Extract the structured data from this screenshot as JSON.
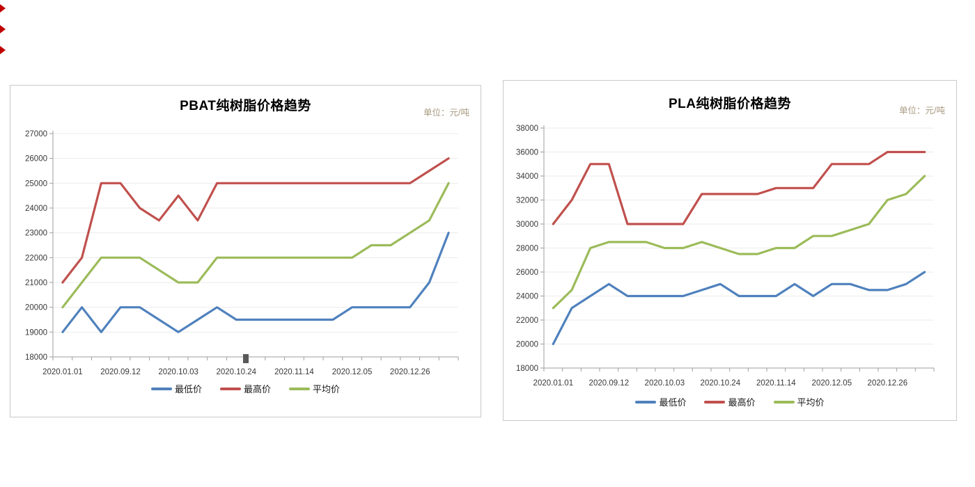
{
  "page": {
    "background": "#ffffff",
    "edge_marker_color": "#c00000",
    "edge_marker_count": 3
  },
  "chart_data": [
    {
      "type": "line",
      "title": "PBAT纯树脂价格趋势",
      "unit_label": "单位：元/吨",
      "ylim": [
        18000,
        27000
      ],
      "ytick_step": 1000,
      "y_tick_labels": [
        "18000",
        "19000",
        "20000",
        "21000",
        "22000",
        "23000",
        "24000",
        "25000",
        "26000",
        "27000"
      ],
      "x_labels": [
        "2020.01.01",
        "2020.09.12",
        "2020.10.03",
        "2020.10.24",
        "2020.11.14",
        "2020.12.05",
        "2020.12.26"
      ],
      "x_label_indices": [
        0,
        3,
        6,
        9,
        12,
        15,
        18
      ],
      "n_points": 21,
      "grid": true,
      "legend_position": "bottom",
      "axis_color": "#9e9e9e",
      "gridline_color": "#ebebeb",
      "tick_label_color": "#383838",
      "series": [
        {
          "name": "最低价",
          "color": "#4F81BD",
          "values": [
            19000,
            20000,
            19000,
            20000,
            20000,
            19500,
            19000,
            19500,
            20000,
            19500,
            19500,
            19500,
            19500,
            19500,
            19500,
            20000,
            20000,
            20000,
            20000,
            21000,
            23000
          ]
        },
        {
          "name": "最高价",
          "color": "#C0504D",
          "values": [
            21000,
            22000,
            25000,
            25000,
            24000,
            23500,
            24500,
            23500,
            25000,
            25000,
            25000,
            25000,
            25000,
            25000,
            25000,
            25000,
            25000,
            25000,
            25000,
            25500,
            26000
          ]
        },
        {
          "name": "平均价",
          "color": "#9BBB59",
          "values": [
            20000,
            21000,
            22000,
            22000,
            22000,
            21500,
            21000,
            21000,
            22000,
            22000,
            22000,
            22000,
            22000,
            22000,
            22000,
            22000,
            22500,
            22500,
            23000,
            23500,
            25000
          ]
        }
      ]
    },
    {
      "type": "line",
      "title": "PLA纯树脂价格趋势",
      "unit_label": "单位：元/吨",
      "ylim": [
        18000,
        38000
      ],
      "ytick_step": 2000,
      "y_tick_labels": [
        "18000",
        "20000",
        "22000",
        "24000",
        "26000",
        "28000",
        "30000",
        "32000",
        "34000",
        "36000",
        "38000"
      ],
      "x_labels": [
        "2020.01.01",
        "2020.09.12",
        "2020.10.03",
        "2020.10.24",
        "2020.11.14",
        "2020.12.05",
        "2020.12.26"
      ],
      "x_label_indices": [
        0,
        3,
        6,
        9,
        12,
        15,
        18
      ],
      "n_points": 21,
      "grid": true,
      "legend_position": "bottom",
      "axis_color": "#9e9e9e",
      "gridline_color": "#ebebeb",
      "tick_label_color": "#383838",
      "series": [
        {
          "name": "最低价",
          "color": "#4F81BD",
          "values": [
            20000,
            23000,
            24000,
            25000,
            24000,
            24000,
            24000,
            24000,
            24500,
            25000,
            24000,
            24000,
            24000,
            25000,
            24000,
            25000,
            25000,
            24500,
            24500,
            25000,
            26000
          ]
        },
        {
          "name": "最高价",
          "color": "#C0504D",
          "values": [
            30000,
            32000,
            35000,
            35000,
            30000,
            30000,
            30000,
            30000,
            32500,
            32500,
            32500,
            32500,
            33000,
            33000,
            33000,
            35000,
            35000,
            35000,
            36000,
            36000,
            36000
          ]
        },
        {
          "name": "平均价",
          "color": "#9BBB59",
          "values": [
            23000,
            24500,
            28000,
            28500,
            28500,
            28500,
            28000,
            28000,
            28500,
            28000,
            27500,
            27500,
            28000,
            28000,
            29000,
            29000,
            29500,
            30000,
            32000,
            32500,
            34000
          ]
        }
      ]
    }
  ]
}
